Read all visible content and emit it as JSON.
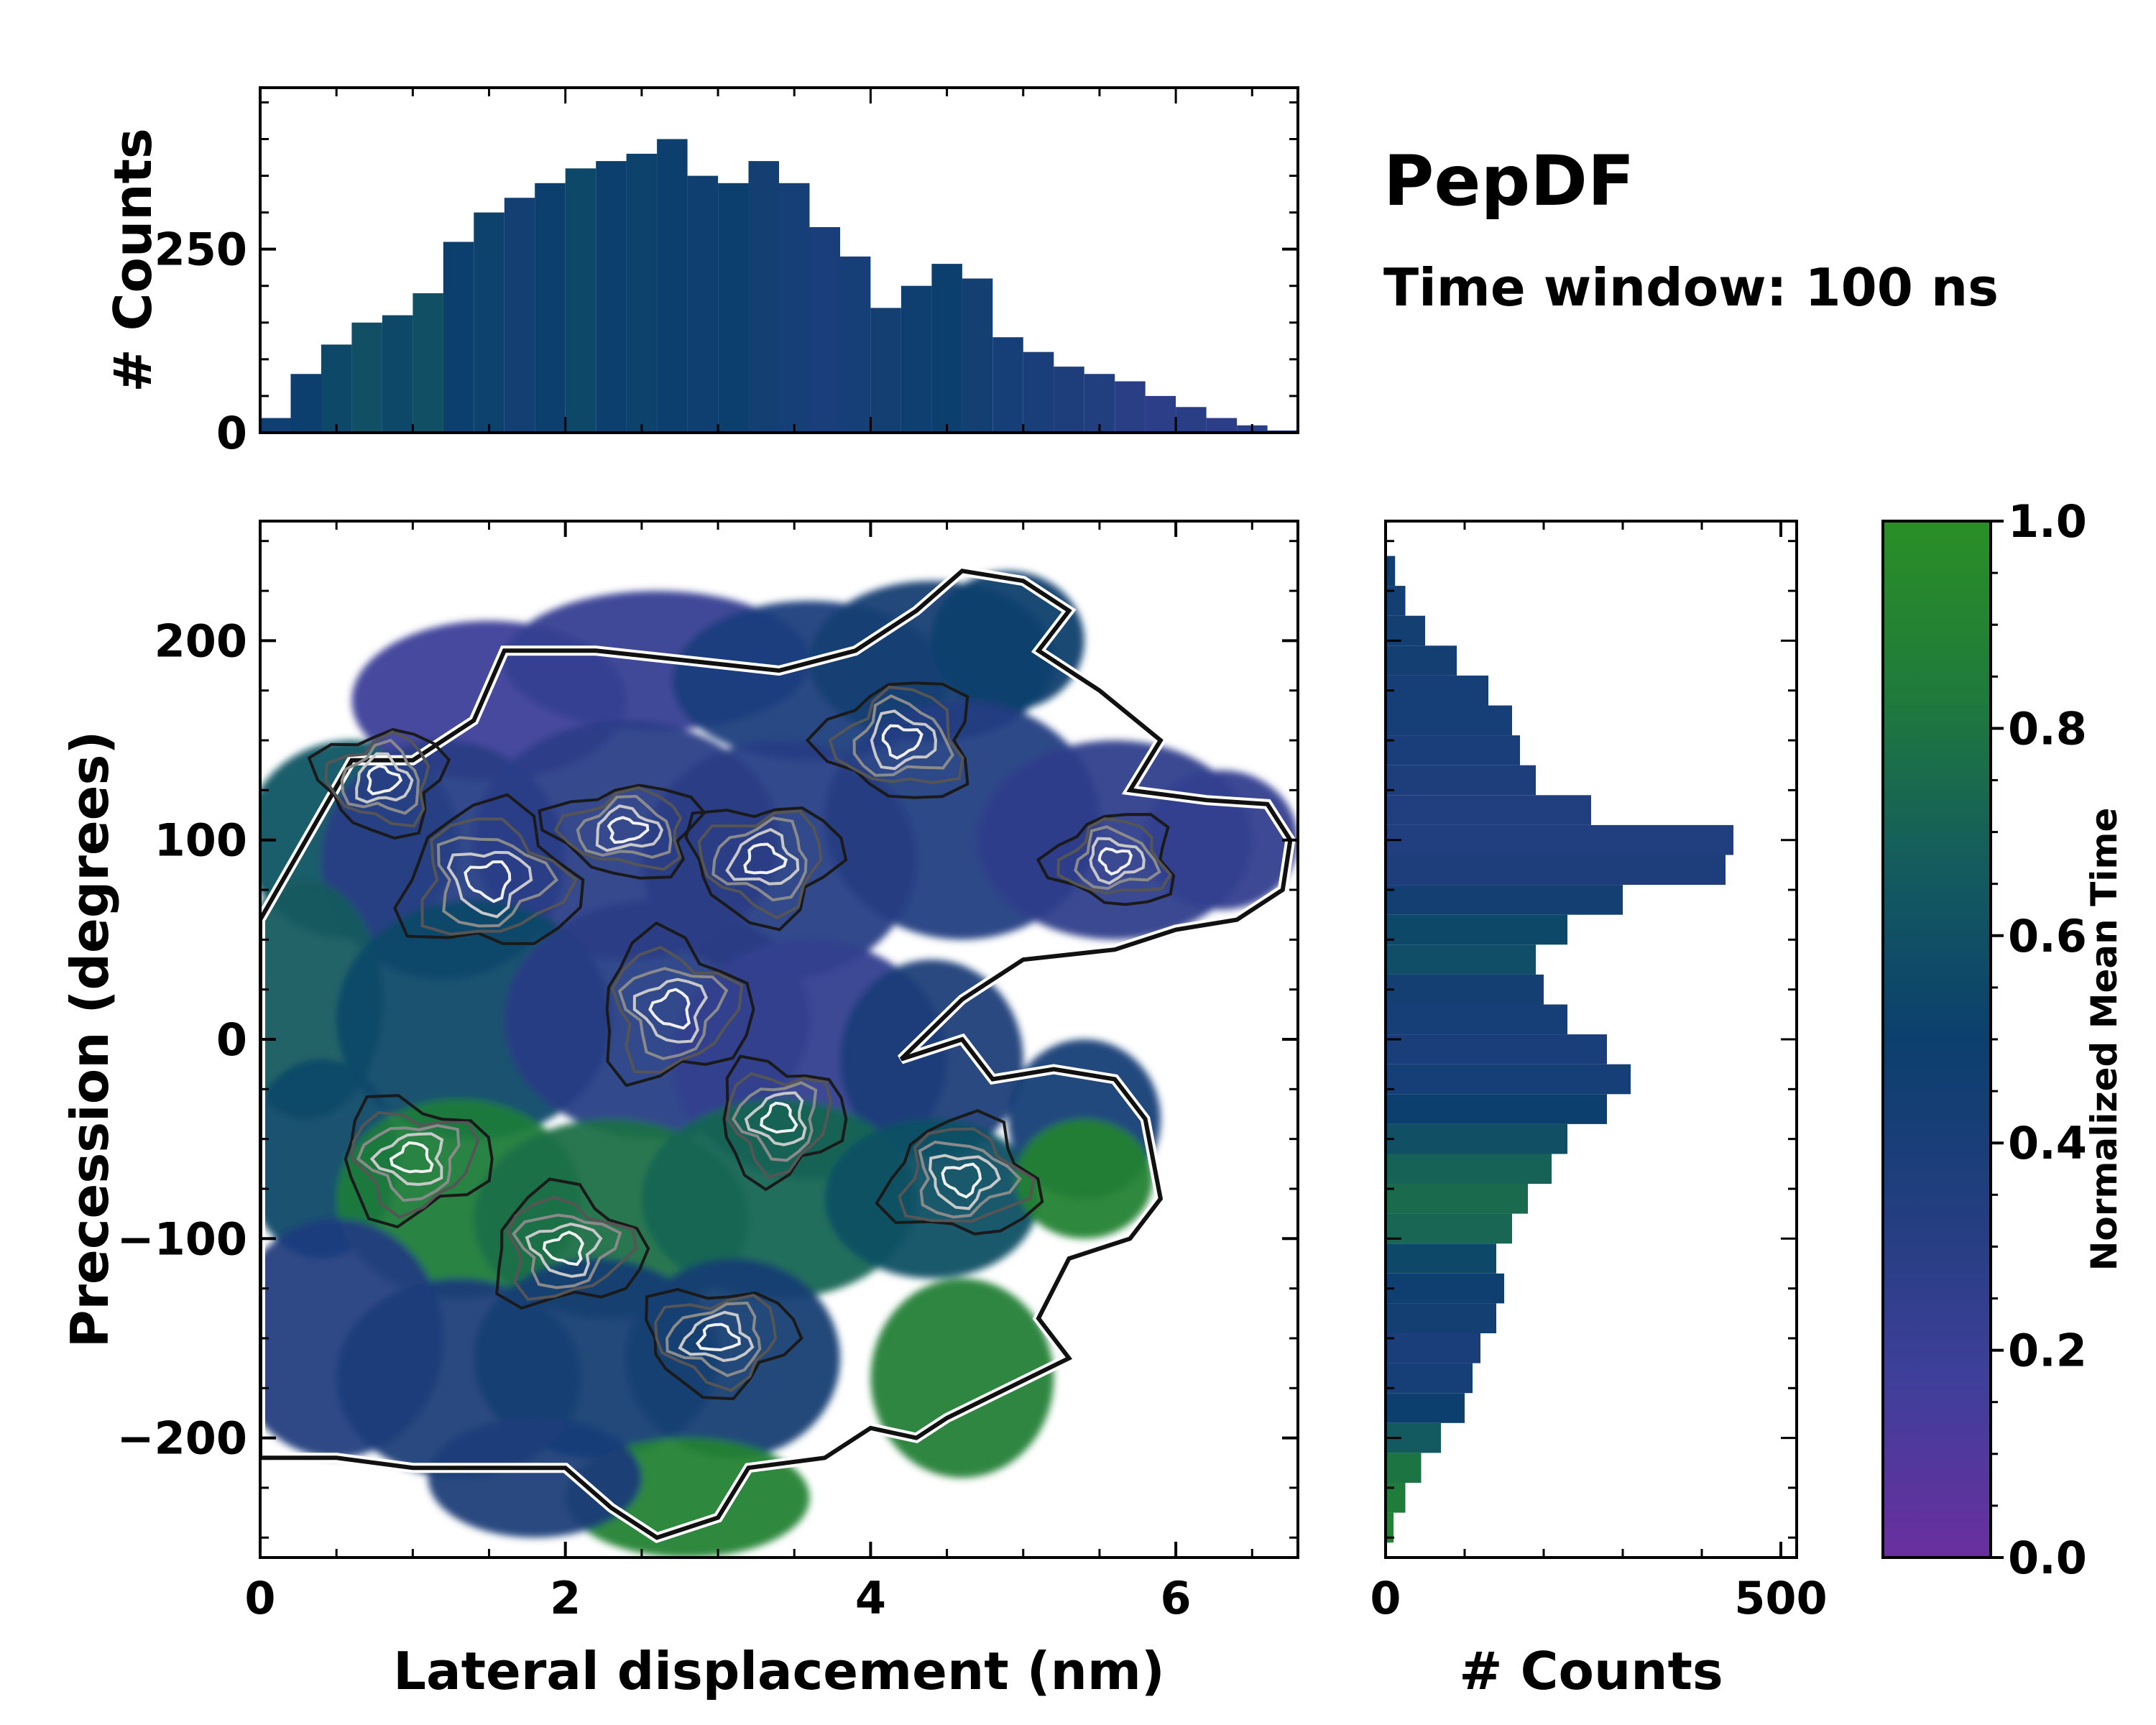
{
  "chart_data": {
    "type": "heatmap",
    "title": "PepDF",
    "subtitle": "Time window: 100 ns",
    "xlabel": "Lateral displacement (nm)",
    "ylabel": "Precession (degrees)",
    "xlim": [
      0,
      6.8
    ],
    "ylim": [
      -260,
      260
    ],
    "x_ticks": [
      0,
      2,
      4,
      6
    ],
    "x_tick_labels": [
      "0",
      "2",
      "4",
      "6"
    ],
    "y_ticks": [
      -200,
      -100,
      0,
      100,
      200
    ],
    "y_tick_labels": [
      "−200",
      "−100",
      "0",
      "100",
      "200"
    ],
    "colorbar": {
      "label": "Normalized Mean Time",
      "range": [
        0,
        1
      ],
      "ticks": [
        0.0,
        0.2,
        0.4,
        0.6,
        0.8,
        1.0
      ],
      "tick_labels": [
        "0.0",
        "0.2",
        "0.4",
        "0.6",
        "0.8",
        "1.0"
      ],
      "colors": [
        "#6a2f9e",
        "#3f3f9a",
        "#233e80",
        "#0c3f6e",
        "#145c5e",
        "#1f7a3c",
        "#2a8f26"
      ]
    },
    "top_histogram": {
      "ylabel": "# Counts",
      "y_ticks": [
        0,
        250
      ],
      "y_tick_labels": [
        "0",
        "250"
      ],
      "ylim": [
        0,
        470
      ],
      "x": [
        0.1,
        0.3,
        0.5,
        0.7,
        0.9,
        1.1,
        1.3,
        1.5,
        1.7,
        1.9,
        2.1,
        2.3,
        2.5,
        2.7,
        2.9,
        3.1,
        3.3,
        3.5,
        3.7,
        3.9,
        4.1,
        4.3,
        4.5,
        4.7,
        4.9,
        5.1,
        5.3,
        5.5,
        5.7,
        5.9,
        6.1,
        6.3,
        6.5,
        6.7
      ],
      "values": [
        20,
        80,
        120,
        150,
        160,
        190,
        260,
        300,
        320,
        340,
        360,
        370,
        380,
        400,
        350,
        340,
        370,
        340,
        280,
        240,
        170,
        200,
        230,
        210,
        130,
        110,
        90,
        80,
        70,
        50,
        35,
        20,
        10,
        3
      ]
    },
    "right_histogram": {
      "xlabel": "# Counts",
      "x_ticks": [
        0,
        500
      ],
      "x_tick_labels": [
        "0",
        "500"
      ],
      "xlim": [
        0,
        520
      ],
      "y": [
        235,
        220,
        205,
        190,
        175,
        160,
        145,
        130,
        115,
        100,
        85,
        70,
        55,
        40,
        25,
        10,
        -5,
        -20,
        -35,
        -50,
        -65,
        -80,
        -95,
        -110,
        -125,
        -140,
        -155,
        -170,
        -185,
        -200,
        -215,
        -230,
        -245
      ],
      "values": [
        12,
        25,
        50,
        90,
        130,
        160,
        170,
        190,
        260,
        440,
        430,
        300,
        230,
        190,
        200,
        230,
        280,
        310,
        280,
        230,
        210,
        180,
        160,
        140,
        150,
        140,
        120,
        110,
        100,
        70,
        45,
        25,
        10
      ]
    }
  }
}
